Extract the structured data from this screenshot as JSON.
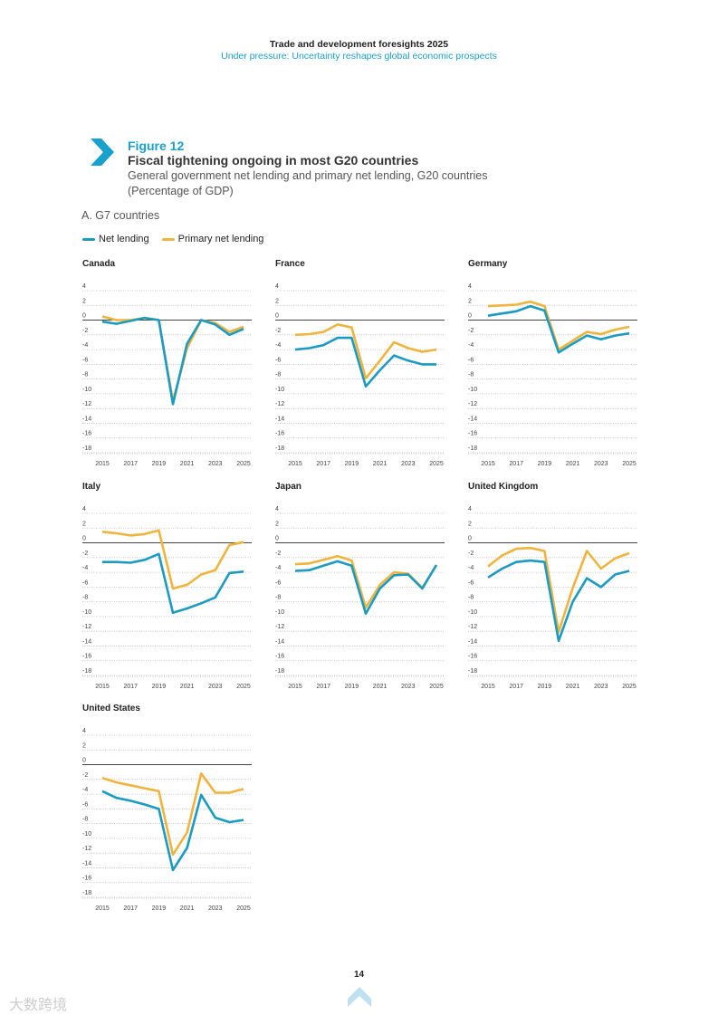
{
  "header": {
    "report_title": "Trade and development foresights 2025",
    "chapter": "Under pressure: Uncertainty reshapes global economic prospects"
  },
  "figure": {
    "number": "Figure 12",
    "title": "Fiscal tightening ongoing in most G20 countries",
    "subtitle": "General government net lending and primary net lending, G20 countries",
    "unit": "(Percentage of GDP)",
    "section": "A. G7 countries"
  },
  "legend": {
    "net": "Net lending",
    "primary": "Primary net lending"
  },
  "colors": {
    "net": "#1b9ac4",
    "primary": "#f0b43c",
    "accent": "#1aa0cc"
  },
  "page_number": "14",
  "watermark": "大数跨境",
  "chart_data": [
    {
      "type": "line",
      "title": "Canada",
      "x": [
        2015,
        2016,
        2017,
        2018,
        2019,
        2020,
        2021,
        2022,
        2023,
        2024,
        2025
      ],
      "ylim": [
        -18,
        4
      ],
      "yticks": [
        "4",
        "2",
        "0",
        "-2",
        "-4",
        "-6",
        "-8",
        "-10",
        "-12",
        "-14",
        "-16",
        "-18"
      ],
      "xticks": [
        "2015",
        "2017",
        "2019",
        "2021",
        "2023",
        "2025"
      ],
      "series": [
        {
          "name": "Net lending",
          "values": [
            -0.2,
            -0.5,
            -0.1,
            0.3,
            0,
            -11.4,
            -3.2,
            0,
            -0.6,
            -2.0,
            -1.2
          ]
        },
        {
          "name": "Primary net lending",
          "values": [
            0.5,
            0,
            0,
            0.3,
            0,
            -11,
            -3.8,
            0,
            -0.4,
            -1.6,
            -0.9
          ]
        }
      ]
    },
    {
      "type": "line",
      "title": "France",
      "x": [
        2015,
        2016,
        2017,
        2018,
        2019,
        2020,
        2021,
        2022,
        2023,
        2024,
        2025
      ],
      "ylim": [
        -18,
        4
      ],
      "yticks": [
        "4",
        "2",
        "0",
        "-2",
        "-4",
        "-6",
        "-8",
        "-10",
        "-12",
        "-14",
        "-16",
        "-18"
      ],
      "xticks": [
        "2015",
        "2017",
        "2019",
        "2021",
        "2023",
        "2025"
      ],
      "series": [
        {
          "name": "Net lending",
          "values": [
            -4,
            -3.8,
            -3.4,
            -2.4,
            -2.4,
            -9,
            -6.8,
            -4.8,
            -5.5,
            -6,
            -6
          ]
        },
        {
          "name": "Primary net lending",
          "values": [
            -2,
            -1.9,
            -1.6,
            -0.6,
            -1,
            -7.9,
            -5.5,
            -3,
            -3.8,
            -4.3,
            -4
          ]
        }
      ]
    },
    {
      "type": "line",
      "title": "Germany",
      "x": [
        2015,
        2016,
        2017,
        2018,
        2019,
        2020,
        2021,
        2022,
        2023,
        2024,
        2025
      ],
      "ylim": [
        -18,
        4
      ],
      "yticks": [
        "4",
        "2",
        "0",
        "-2",
        "-4",
        "-6",
        "-8",
        "-10",
        "-12",
        "-14",
        "-16",
        "-18"
      ],
      "xticks": [
        "2015",
        "2017",
        "2019",
        "2021",
        "2023",
        "2025"
      ],
      "series": [
        {
          "name": "Net lending",
          "values": [
            0.6,
            0.9,
            1.2,
            1.9,
            1.3,
            -4.4,
            -3.2,
            -2.1,
            -2.6,
            -2.1,
            -1.8
          ]
        },
        {
          "name": "Primary net lending",
          "values": [
            1.9,
            2.0,
            2.1,
            2.5,
            1.9,
            -4.0,
            -2.8,
            -1.6,
            -1.9,
            -1.3,
            -0.9
          ]
        }
      ]
    },
    {
      "type": "line",
      "title": "Italy",
      "x": [
        2015,
        2016,
        2017,
        2018,
        2019,
        2020,
        2021,
        2022,
        2023,
        2024,
        2025
      ],
      "ylim": [
        -18,
        4
      ],
      "yticks": [
        "4",
        "2",
        "0",
        "-2",
        "-4",
        "-6",
        "-8",
        "-10",
        "-12",
        "-14",
        "-16",
        "-18"
      ],
      "xticks": [
        "2015",
        "2017",
        "2019",
        "2021",
        "2023",
        "2025"
      ],
      "series": [
        {
          "name": "Net lending",
          "values": [
            -2.6,
            -2.6,
            -2.7,
            -2.3,
            -1.5,
            -9.5,
            -8.9,
            -8.2,
            -7.4,
            -4.1,
            -3.9
          ]
        },
        {
          "name": "Primary net lending",
          "values": [
            1.5,
            1.3,
            1.0,
            1.2,
            1.7,
            -6.2,
            -5.7,
            -4.3,
            -3.7,
            -0.3,
            0.1
          ]
        }
      ]
    },
    {
      "type": "line",
      "title": "Japan",
      "x": [
        2015,
        2016,
        2017,
        2018,
        2019,
        2020,
        2021,
        2022,
        2023,
        2024,
        2025
      ],
      "ylim": [
        -18,
        4
      ],
      "yticks": [
        "4",
        "2",
        "0",
        "-2",
        "-4",
        "-6",
        "-8",
        "-10",
        "-12",
        "-14",
        "-16",
        "-18"
      ],
      "xticks": [
        "2015",
        "2017",
        "2019",
        "2021",
        "2023",
        "2025"
      ],
      "series": [
        {
          "name": "Net lending",
          "values": [
            -3.8,
            -3.7,
            -3.1,
            -2.5,
            -3.1,
            -9.6,
            -6.2,
            -4.4,
            -4.3,
            -6.2,
            -3.0
          ]
        },
        {
          "name": "Primary net lending",
          "values": [
            -2.9,
            -2.8,
            -2.3,
            -1.8,
            -2.4,
            -8.8,
            -5.7,
            -4.0,
            -4.2,
            -6.1,
            -3.0
          ]
        }
      ]
    },
    {
      "type": "line",
      "title": "United Kingdom",
      "x": [
        2015,
        2016,
        2017,
        2018,
        2019,
        2020,
        2021,
        2022,
        2023,
        2024,
        2025
      ],
      "ylim": [
        -18,
        4
      ],
      "yticks": [
        "4",
        "2",
        "0",
        "-2",
        "-4",
        "-6",
        "-8",
        "-10",
        "-12",
        "-14",
        "-16",
        "-18"
      ],
      "xticks": [
        "2015",
        "2017",
        "2019",
        "2021",
        "2023",
        "2025"
      ],
      "series": [
        {
          "name": "Net lending",
          "values": [
            -4.7,
            -3.5,
            -2.6,
            -2.4,
            -2.6,
            -13.3,
            -8.0,
            -4.8,
            -6.0,
            -4.3,
            -3.8
          ]
        },
        {
          "name": "Primary net lending",
          "values": [
            -3.2,
            -1.7,
            -0.8,
            -0.7,
            -1.1,
            -12.1,
            -6.1,
            -1.1,
            -3.5,
            -2.1,
            -1.4
          ]
        }
      ]
    },
    {
      "type": "line",
      "title": "United States",
      "x": [
        2015,
        2016,
        2017,
        2018,
        2019,
        2020,
        2021,
        2022,
        2023,
        2024,
        2025
      ],
      "ylim": [
        -18,
        4
      ],
      "yticks": [
        "4",
        "2",
        "0",
        "-2",
        "-4",
        "-6",
        "-8",
        "-10",
        "-12",
        "-14",
        "-16",
        "-18"
      ],
      "xticks": [
        "2015",
        "2017",
        "2019",
        "2021",
        "2023",
        "2025"
      ],
      "series": [
        {
          "name": "Net lending",
          "values": [
            -3.6,
            -4.5,
            -4.9,
            -5.4,
            -6.0,
            -14.3,
            -11.3,
            -4.1,
            -7.2,
            -7.8,
            -7.5
          ]
        },
        {
          "name": "Primary net lending",
          "values": [
            -1.8,
            -2.4,
            -2.8,
            -3.2,
            -3.6,
            -12.2,
            -9.2,
            -1.2,
            -3.8,
            -3.8,
            -3.3
          ]
        }
      ]
    }
  ]
}
